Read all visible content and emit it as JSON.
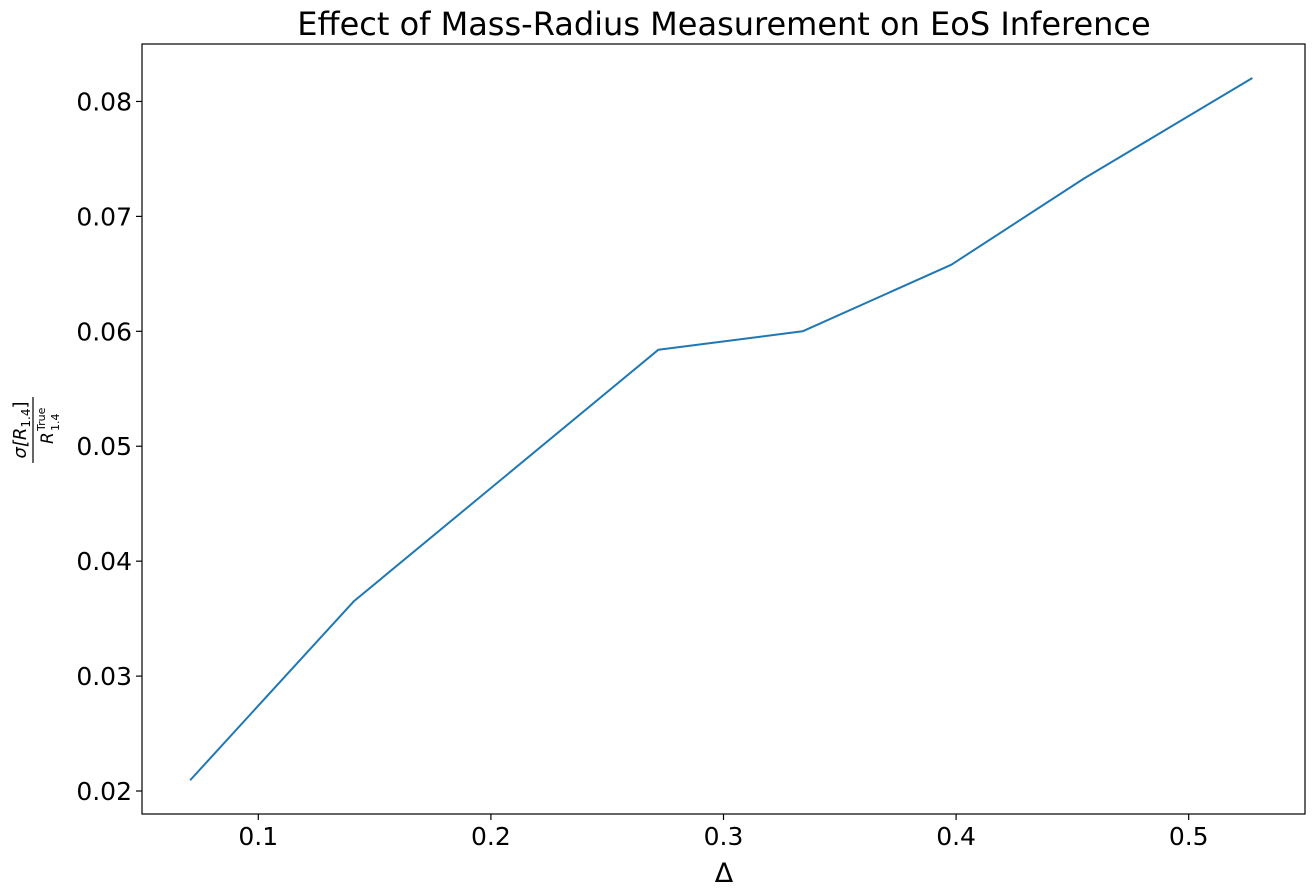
{
  "chart_data": {
    "type": "line",
    "title": "Effect of Mass-Radius Measurement on EoS Inference",
    "xlabel": "Δ",
    "ylabel": {
      "numerator_prefix": "σ[R",
      "numerator_sub": "1.4",
      "numerator_suffix": "]",
      "denominator_base": "R",
      "denominator_sub": "1.4",
      "denominator_sup": "True"
    },
    "xlim": [
      0.05,
      0.55
    ],
    "ylim": [
      0.018,
      0.085
    ],
    "xticks": [
      0.1,
      0.2,
      0.3,
      0.4,
      0.5
    ],
    "xtick_labels": [
      "0.1",
      "0.2",
      "0.3",
      "0.4",
      "0.5"
    ],
    "yticks": [
      0.02,
      0.03,
      0.04,
      0.05,
      0.06,
      0.07,
      0.08
    ],
    "ytick_labels": [
      "0.02",
      "0.03",
      "0.04",
      "0.05",
      "0.06",
      "0.07",
      "0.08"
    ],
    "grid": false,
    "series": [
      {
        "color": "#1f77b4",
        "x": [
          0.071,
          0.141,
          0.272,
          0.334,
          0.398,
          0.455,
          0.527
        ],
        "y": [
          0.021,
          0.0365,
          0.0584,
          0.06,
          0.0658,
          0.0733,
          0.082
        ]
      }
    ]
  }
}
